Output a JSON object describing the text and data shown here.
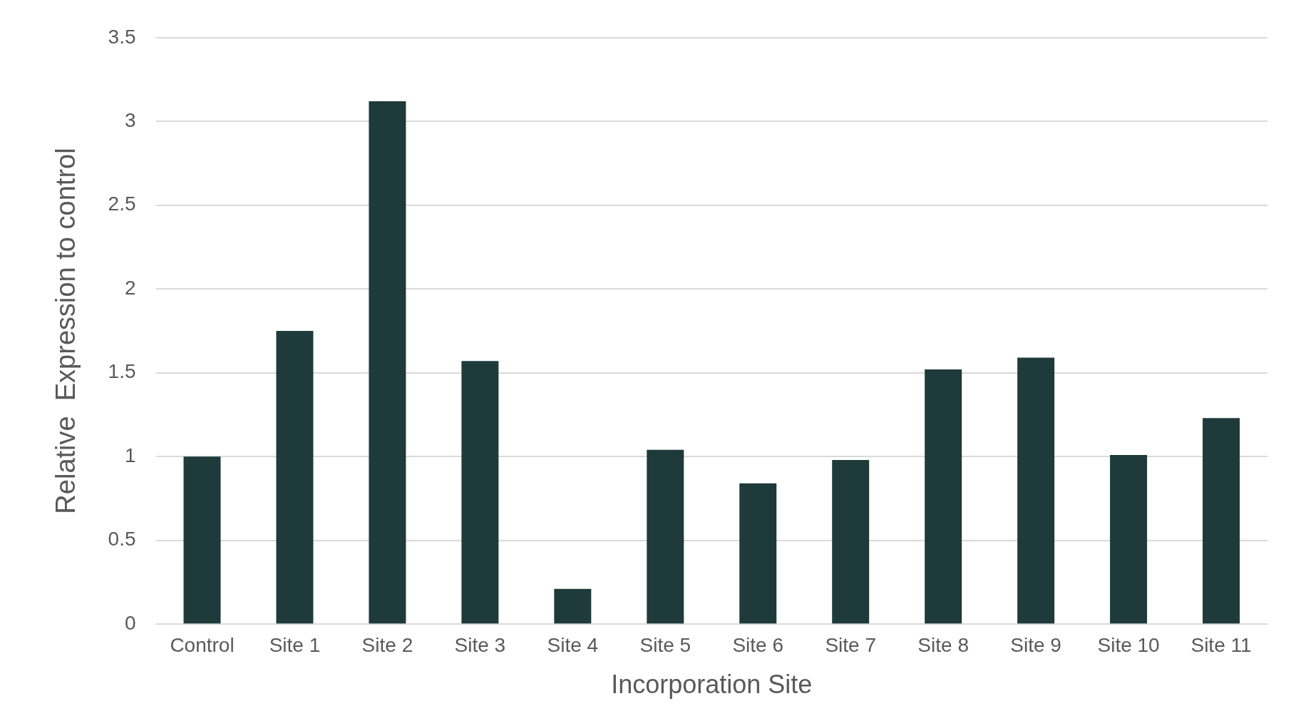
{
  "chart_data": {
    "type": "bar",
    "xlabel": "Incorporation Site",
    "ylabel": "Relative  Expression to control",
    "categories": [
      "Control",
      "Site 1",
      "Site 2",
      "Site 3",
      "Site 4",
      "Site 5",
      "Site 6",
      "Site 7",
      "Site 8",
      "Site 9",
      "Site 10",
      "Site 11"
    ],
    "values": [
      1.0,
      1.75,
      3.12,
      1.57,
      0.21,
      1.04,
      0.84,
      0.98,
      1.52,
      1.59,
      1.01,
      1.23
    ],
    "color": "#1e3a3a",
    "ylim": [
      0,
      3.5
    ],
    "yticks": [
      0,
      0.5,
      1,
      1.5,
      2,
      2.5,
      3,
      3.5
    ],
    "grid": "y",
    "legend": false
  }
}
